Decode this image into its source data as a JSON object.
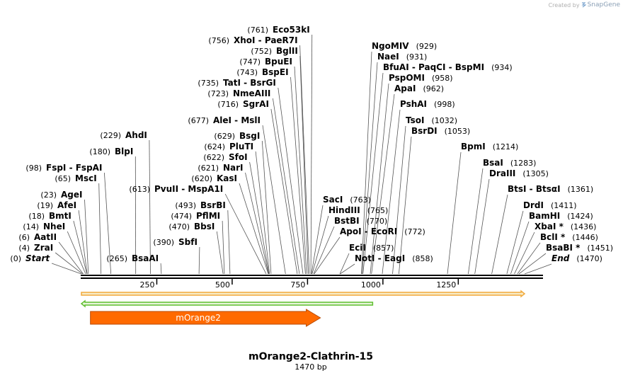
{
  "branding": {
    "created_by": "Created by",
    "app_name": "SnapGene"
  },
  "map": {
    "name": "mOrange2-Clathrin-15",
    "length_label": "1470 bp",
    "length_bp": 1470,
    "axis_ticks": [
      {
        "pos": 250,
        "label": "250"
      },
      {
        "pos": 500,
        "label": "500"
      },
      {
        "pos": 750,
        "label": "750"
      },
      {
        "pos": 1000,
        "label": "1000"
      },
      {
        "pos": 1250,
        "label": "1250"
      }
    ],
    "colors": {
      "backbone": "#000000",
      "orf_fill": "#ff6a00",
      "orf_stroke": "#b84a00",
      "bar_orange": "#f2a93b",
      "bar_orange_fill": "#f7ecc9",
      "bar_green": "#5fbf2f",
      "bar_green_fill": "#e8f5dd",
      "leader": "#555555"
    },
    "features": [
      {
        "name": "mOrange2",
        "start_bp": 31,
        "end_bp": 788,
        "strand": "forward",
        "type": "orf"
      }
    ],
    "orf_bars": [
      {
        "start_bp": 0,
        "end_bp": 1470,
        "strand": "forward",
        "color": "orange"
      },
      {
        "start_bp": 0,
        "end_bp": 966,
        "strand": "reverse",
        "color": "green"
      }
    ],
    "sites": [
      {
        "id": "start",
        "name": "Start",
        "pos_text": "(0)",
        "bp": 0,
        "italic": true
      },
      {
        "id": "zrai",
        "name": "ZraI",
        "pos_text": "(4)",
        "bp": 4
      },
      {
        "id": "aatii",
        "name": "AatII",
        "pos_text": "(6)",
        "bp": 6
      },
      {
        "id": "nhei",
        "name": "NheI",
        "pos_text": "(14)",
        "bp": 14
      },
      {
        "id": "bmti",
        "name": "BmtI",
        "pos_text": "(18)",
        "bp": 18
      },
      {
        "id": "afei",
        "name": "AfeI",
        "pos_text": "(19)",
        "bp": 19
      },
      {
        "id": "agei",
        "name": "AgeI",
        "pos_text": "(23)",
        "bp": 23
      },
      {
        "id": "msci",
        "name": "MscI",
        "pos_text": "(65)",
        "bp": 65
      },
      {
        "id": "fspi",
        "name": "FspI  -  FspAI",
        "pos_text": "(98)",
        "bp": 98
      },
      {
        "id": "blpi",
        "name": "BlpI",
        "pos_text": "(180)",
        "bp": 180
      },
      {
        "id": "ahdi",
        "name": "AhdI",
        "pos_text": "(229)",
        "bp": 229
      },
      {
        "id": "bsaai",
        "name": "BsaAI",
        "pos_text": "(265)",
        "bp": 265
      },
      {
        "id": "sbfi",
        "name": "SbfI",
        "pos_text": "(390)",
        "bp": 390
      },
      {
        "id": "bbsi",
        "name": "BbsI",
        "pos_text": "(470)",
        "bp": 470
      },
      {
        "id": "pflmi",
        "name": "PflMI",
        "pos_text": "(474)",
        "bp": 474
      },
      {
        "id": "bsrbi",
        "name": "BsrBI",
        "pos_text": "(493)",
        "bp": 493
      },
      {
        "id": "pvuii",
        "name": "PvuII  -  MspA1I",
        "pos_text": "(613)",
        "bp": 613
      },
      {
        "id": "kasi",
        "name": "KasI",
        "pos_text": "(620)",
        "bp": 620
      },
      {
        "id": "nari",
        "name": "NarI",
        "pos_text": "(621)",
        "bp": 621
      },
      {
        "id": "sfoi",
        "name": "SfoI",
        "pos_text": "(622)",
        "bp": 622
      },
      {
        "id": "pluti",
        "name": "PluTI",
        "pos_text": "(624)",
        "bp": 624
      },
      {
        "id": "bsgi",
        "name": "BsgI",
        "pos_text": "(629)",
        "bp": 629
      },
      {
        "id": "alei",
        "name": "AleI  -  MslI",
        "pos_text": "(677)",
        "bp": 677
      },
      {
        "id": "sgrai",
        "name": "SgrAI",
        "pos_text": "(716)",
        "bp": 716
      },
      {
        "id": "nmeaiii",
        "name": "NmeAIII",
        "pos_text": "(723)",
        "bp": 723
      },
      {
        "id": "tati",
        "name": "TatI  -  BsrGI",
        "pos_text": "(735)",
        "bp": 735
      },
      {
        "id": "bspei",
        "name": "BspEI",
        "pos_text": "(743)",
        "bp": 743
      },
      {
        "id": "bpuei",
        "name": "BpuEI",
        "pos_text": "(747)",
        "bp": 747
      },
      {
        "id": "bglii",
        "name": "BglII",
        "pos_text": "(752)",
        "bp": 752
      },
      {
        "id": "xhoi",
        "name": "XhoI  -  PaeR7I",
        "pos_text": "(756)",
        "bp": 756
      },
      {
        "id": "eco53ki",
        "name": "Eco53kI",
        "pos_text": "(761)",
        "bp": 761
      },
      {
        "id": "saci",
        "name": "SacI",
        "pos_text": "(763)",
        "bp": 763
      },
      {
        "id": "hindiii",
        "name": "HindIII",
        "pos_text": "(765)",
        "bp": 765
      },
      {
        "id": "bstbi",
        "name": "BstBI",
        "pos_text": "(770)",
        "bp": 770
      },
      {
        "id": "apoi",
        "name": "ApoI  -  EcoRI",
        "pos_text": "(772)",
        "bp": 772
      },
      {
        "id": "ecii",
        "name": "EciI",
        "pos_text": "(857)",
        "bp": 857
      },
      {
        "id": "noti",
        "name": "NotI  -  EagI",
        "pos_text": "(858)",
        "bp": 858
      },
      {
        "id": "ngomiv",
        "name": "NgoMIV",
        "pos_text": "(929)",
        "bp": 929
      },
      {
        "id": "naei",
        "name": "NaeI",
        "pos_text": "(931)",
        "bp": 931
      },
      {
        "id": "bfuai",
        "name": "BfuAI  -  PaqCI  -  BspMI",
        "pos_text": "(934)",
        "bp": 934
      },
      {
        "id": "pspomi",
        "name": "PspOMI",
        "pos_text": "(958)",
        "bp": 958
      },
      {
        "id": "apai",
        "name": "ApaI",
        "pos_text": "(962)",
        "bp": 962
      },
      {
        "id": "pshai",
        "name": "PshAI",
        "pos_text": "(998)",
        "bp": 998
      },
      {
        "id": "tsoi",
        "name": "TsoI",
        "pos_text": "(1032)",
        "bp": 1032
      },
      {
        "id": "bsrdi",
        "name": "BsrDI",
        "pos_text": "(1053)",
        "bp": 1053
      },
      {
        "id": "bpmi",
        "name": "BpmI",
        "pos_text": "(1214)",
        "bp": 1214
      },
      {
        "id": "bsai",
        "name": "BsaI",
        "pos_text": "(1283)",
        "bp": 1283
      },
      {
        "id": "draiii",
        "name": "DraIII",
        "pos_text": "(1305)",
        "bp": 1305
      },
      {
        "id": "btsi",
        "name": "BtsI  -  BtsαI",
        "pos_text": "(1361)",
        "bp": 1361
      },
      {
        "id": "drdi",
        "name": "DrdI",
        "pos_text": "(1411)",
        "bp": 1411
      },
      {
        "id": "bamhi",
        "name": "BamHI",
        "pos_text": "(1424)",
        "bp": 1424
      },
      {
        "id": "xbai",
        "name": "XbaI *",
        "pos_text": "(1436)",
        "bp": 1436
      },
      {
        "id": "bcli",
        "name": "BclI *",
        "pos_text": "(1446)",
        "bp": 1446
      },
      {
        "id": "bsabi",
        "name": "BsaBI *",
        "pos_text": "(1451)",
        "bp": 1451
      },
      {
        "id": "end",
        "name": "End",
        "pos_text": "(1470)",
        "bp": 1470,
        "italic": true
      }
    ]
  }
}
